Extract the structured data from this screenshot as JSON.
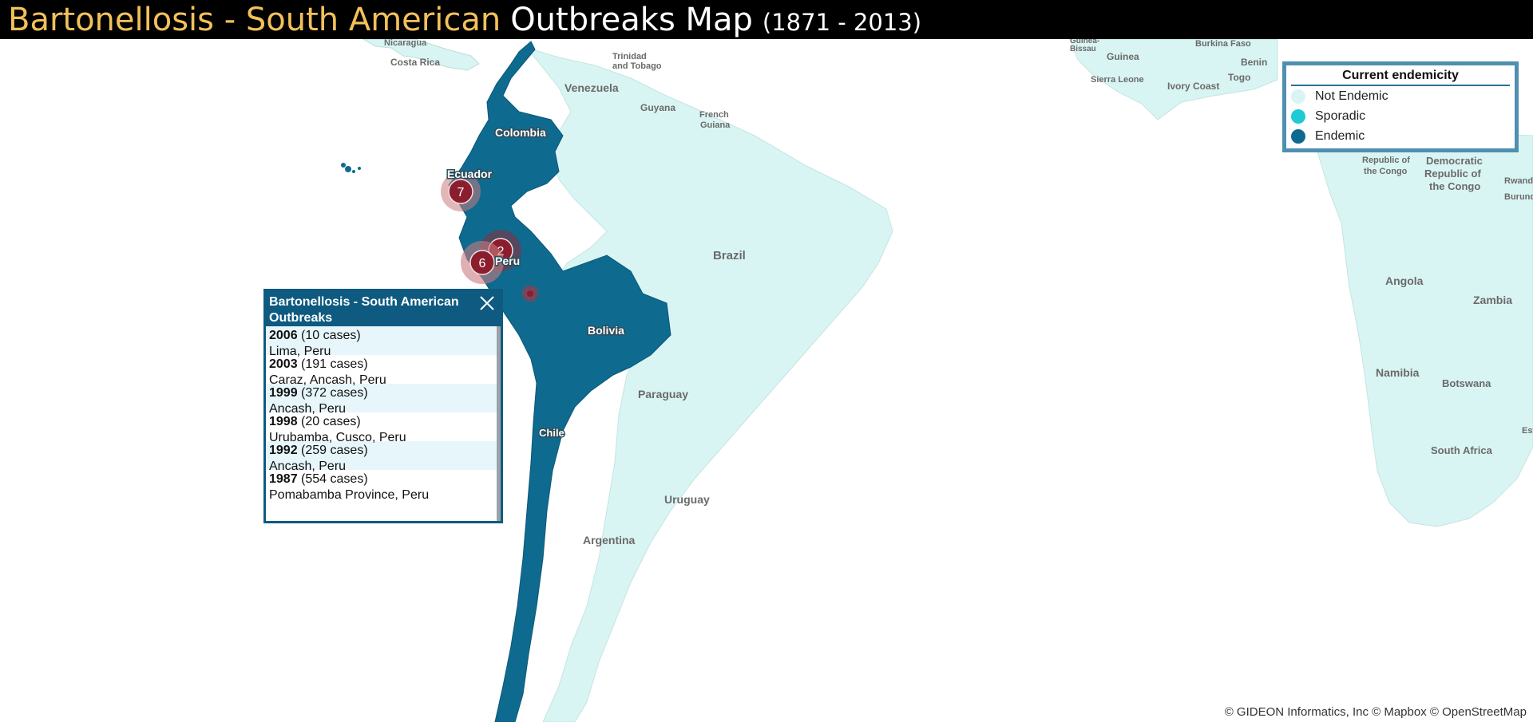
{
  "title": {
    "part1": "Bartonellosis - South American",
    "part2": "Outbreaks Map",
    "part3": "(1871 - 2013)"
  },
  "legend": {
    "title": "Current endemicity",
    "items": [
      {
        "label": "Not Endemic",
        "color": "#d9f5f3"
      },
      {
        "label": "Sporadic",
        "color": "#1ecad3"
      },
      {
        "label": "Endemic",
        "color": "#0f6a8f"
      }
    ]
  },
  "popup": {
    "title": "Bartonellosis - South American Outbreaks",
    "close_icon": "close-icon",
    "entries": [
      {
        "year": "2006",
        "cases": "(10 cases)",
        "location": "Lima, Peru"
      },
      {
        "year": "2003",
        "cases": "(191 cases)",
        "location": "Caraz, Ancash, Peru"
      },
      {
        "year": "1999",
        "cases": "(372 cases)",
        "location": "Ancash, Peru"
      },
      {
        "year": "1998",
        "cases": "(20 cases)",
        "location": "Urubamba, Cusco, Peru"
      },
      {
        "year": "1992",
        "cases": "(259 cases)",
        "location": "Ancash, Peru"
      },
      {
        "year": "1987",
        "cases": "(554 cases)",
        "location": "Pomabamba Province, Peru"
      }
    ]
  },
  "clusters": [
    {
      "count": "7"
    },
    {
      "count": "2"
    },
    {
      "count": "6"
    }
  ],
  "map_labels": {
    "nicaragua": "Nicaragua",
    "costa_rica": "Costa Rica",
    "trinidad_1": "Trinidad",
    "trinidad_2": "and Tobago",
    "venezuela": "Venezuela",
    "guyana": "Guyana",
    "french_guiana_1": "French",
    "french_guiana_2": "Guiana",
    "colombia": "Colombia",
    "ecuador": "Ecuador",
    "peru": "Peru",
    "brazil": "Brazil",
    "bolivia": "Bolivia",
    "paraguay": "Paraguay",
    "chile": "Chile",
    "uruguay": "Uruguay",
    "argentina": "Argentina",
    "guinea_bissau_1": "Guinea-",
    "guinea_bissau_2": "Bissau",
    "guinea": "Guinea",
    "sierra_leone": "Sierra Leone",
    "ivory_coast": "Ivory Coast",
    "burkina_faso": "Burkina Faso",
    "togo": "Togo",
    "benin": "Benin",
    "roc_1": "Republic of",
    "roc_2": "the Congo",
    "drc_1": "Democratic",
    "drc_2": "Republic of",
    "drc_3": "the Congo",
    "rwanda": "Rwanda",
    "burundi": "Burundi",
    "angola": "Angola",
    "zambia": "Zambia",
    "namibia": "Namibia",
    "botswana": "Botswana",
    "eswatini": "Esw",
    "south_africa": "South Africa"
  },
  "attribution": "© GIDEON Informatics, Inc © Mapbox © OpenStreetMap"
}
